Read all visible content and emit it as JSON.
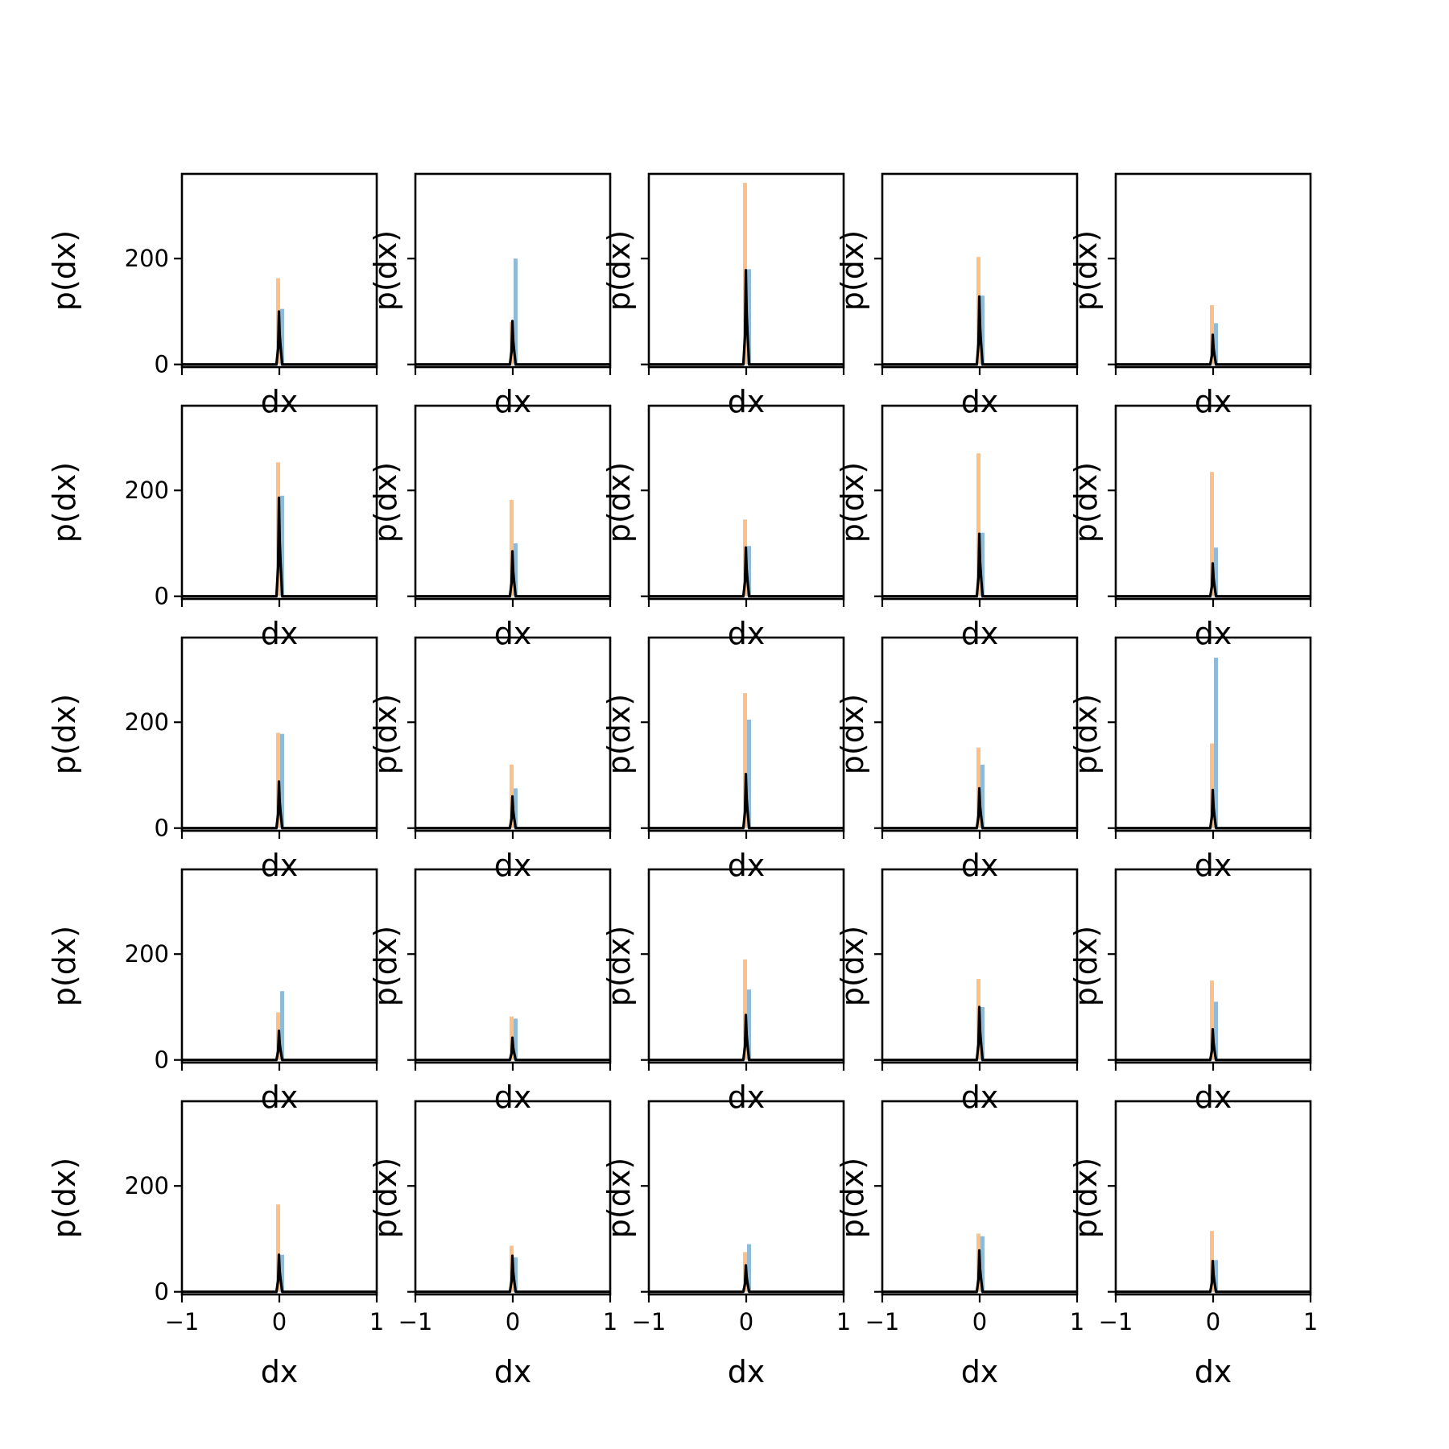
{
  "colors": {
    "series_blue": "#1f77b4",
    "series_orange": "#ff7f0e",
    "kde_line": "#000000",
    "axes": "#000000",
    "background": "#ffffff"
  },
  "chart_data": {
    "type": "grid of histograms",
    "layout": {
      "rows": 5,
      "cols": 5
    },
    "shared": {
      "xlabel": "dx",
      "ylabel": "p(dx)",
      "xlim": [
        -1,
        1
      ],
      "ylim": [
        -5,
        360
      ],
      "xticks": [
        -1,
        0,
        1
      ],
      "xtick_labels": [
        "−1",
        "0",
        "1"
      ],
      "yticks": [
        0,
        200
      ],
      "ytick_labels": [
        "0",
        "200"
      ],
      "grid": false,
      "legend": "none"
    },
    "panels": [
      {
        "row": 0,
        "col": 0,
        "blue_peak": 105,
        "orange_peak": 163,
        "black_peak": 100
      },
      {
        "row": 0,
        "col": 1,
        "blue_peak": 200,
        "orange_peak": 80,
        "black_peak": 82
      },
      {
        "row": 0,
        "col": 2,
        "blue_peak": 180,
        "orange_peak": 343,
        "black_peak": 178
      },
      {
        "row": 0,
        "col": 3,
        "blue_peak": 130,
        "orange_peak": 203,
        "black_peak": 128
      },
      {
        "row": 0,
        "col": 4,
        "blue_peak": 78,
        "orange_peak": 112,
        "black_peak": 56
      },
      {
        "row": 1,
        "col": 0,
        "blue_peak": 190,
        "orange_peak": 253,
        "black_peak": 186
      },
      {
        "row": 1,
        "col": 1,
        "blue_peak": 100,
        "orange_peak": 182,
        "black_peak": 85
      },
      {
        "row": 1,
        "col": 2,
        "blue_peak": 95,
        "orange_peak": 145,
        "black_peak": 92
      },
      {
        "row": 1,
        "col": 3,
        "blue_peak": 120,
        "orange_peak": 270,
        "black_peak": 118
      },
      {
        "row": 1,
        "col": 4,
        "blue_peak": 92,
        "orange_peak": 235,
        "black_peak": 62
      },
      {
        "row": 2,
        "col": 0,
        "blue_peak": 178,
        "orange_peak": 180,
        "black_peak": 88
      },
      {
        "row": 2,
        "col": 1,
        "blue_peak": 75,
        "orange_peak": 120,
        "black_peak": 60
      },
      {
        "row": 2,
        "col": 2,
        "blue_peak": 205,
        "orange_peak": 255,
        "black_peak": 102
      },
      {
        "row": 2,
        "col": 3,
        "blue_peak": 120,
        "orange_peak": 152,
        "black_peak": 75
      },
      {
        "row": 2,
        "col": 4,
        "blue_peak": 322,
        "orange_peak": 160,
        "black_peak": 72
      },
      {
        "row": 3,
        "col": 0,
        "blue_peak": 130,
        "orange_peak": 90,
        "black_peak": 55
      },
      {
        "row": 3,
        "col": 1,
        "blue_peak": 78,
        "orange_peak": 82,
        "black_peak": 42
      },
      {
        "row": 3,
        "col": 2,
        "blue_peak": 133,
        "orange_peak": 190,
        "black_peak": 85
      },
      {
        "row": 3,
        "col": 3,
        "blue_peak": 100,
        "orange_peak": 153,
        "black_peak": 100
      },
      {
        "row": 3,
        "col": 4,
        "blue_peak": 110,
        "orange_peak": 150,
        "black_peak": 58
      },
      {
        "row": 4,
        "col": 0,
        "blue_peak": 70,
        "orange_peak": 165,
        "black_peak": 70
      },
      {
        "row": 4,
        "col": 1,
        "blue_peak": 65,
        "orange_peak": 87,
        "black_peak": 68
      },
      {
        "row": 4,
        "col": 2,
        "blue_peak": 90,
        "orange_peak": 75,
        "black_peak": 50
      },
      {
        "row": 4,
        "col": 3,
        "blue_peak": 105,
        "orange_peak": 110,
        "black_peak": 78
      },
      {
        "row": 4,
        "col": 4,
        "blue_peak": 60,
        "orange_peak": 115,
        "black_peak": 58
      }
    ]
  }
}
